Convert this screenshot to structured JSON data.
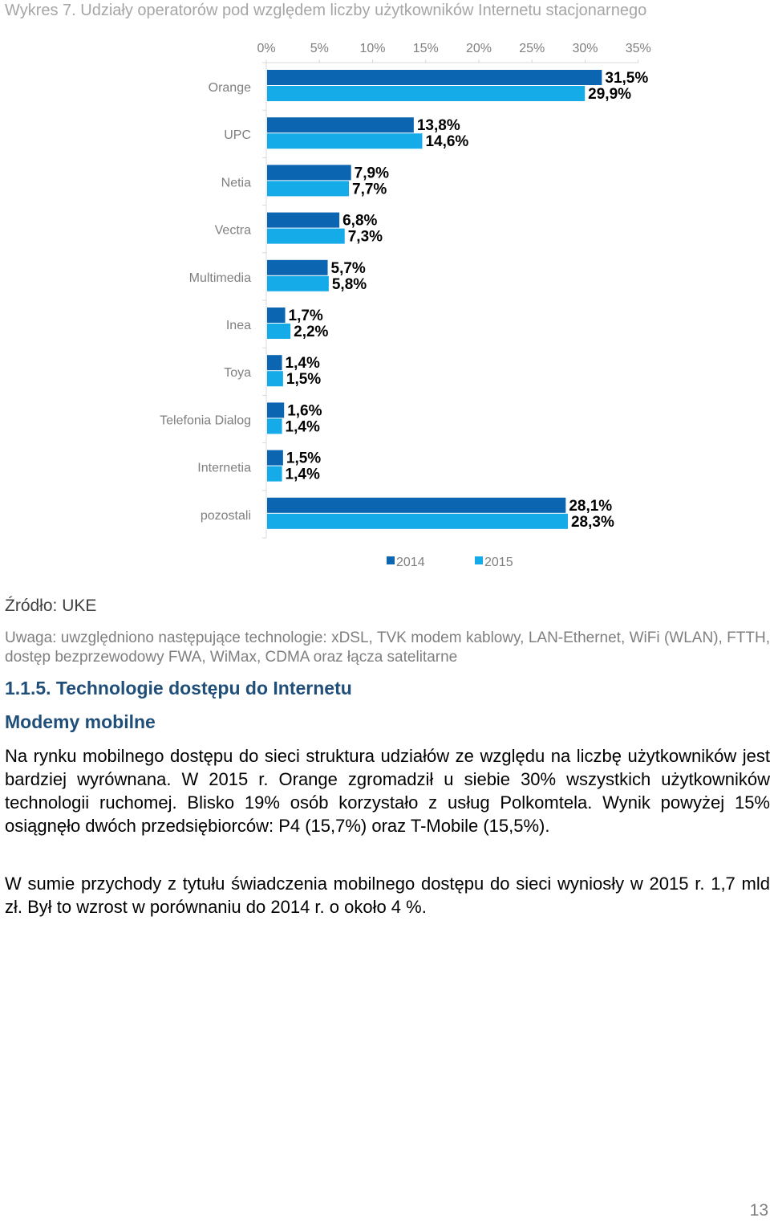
{
  "caption": "Wykres 7. Udziały operatorów pod względem liczby użytkowników Internetu stacjonarnego",
  "chart_data": {
    "type": "bar",
    "orientation": "horizontal",
    "categories": [
      "Orange",
      "UPC",
      "Netia",
      "Vectra",
      "Multimedia",
      "Inea",
      "Toya",
      "Telefonia Dialog",
      "Internetia",
      "pozostali"
    ],
    "series": [
      {
        "name": "2014",
        "color": "#0b65b1",
        "values": [
          31.5,
          13.8,
          7.9,
          6.8,
          5.7,
          1.7,
          1.4,
          1.6,
          1.5,
          28.1
        ],
        "labels": [
          "31,5%",
          "13,8%",
          "7,9%",
          "6,8%",
          "5,7%",
          "1,7%",
          "1,4%",
          "1,6%",
          "1,5%",
          "28,1%"
        ]
      },
      {
        "name": "2015",
        "color": "#15aae8",
        "values": [
          29.9,
          14.6,
          7.7,
          7.3,
          5.8,
          2.2,
          1.5,
          1.4,
          1.4,
          28.3
        ],
        "labels": [
          "29,9%",
          "14,6%",
          "7,7%",
          "7,3%",
          "5,8%",
          "2,2%",
          "1,5%",
          "1,4%",
          "1,4%",
          "28,3%"
        ]
      }
    ],
    "xlim": [
      0,
      35
    ],
    "xticks": [
      "0%",
      "5%",
      "10%",
      "15%",
      "20%",
      "25%",
      "30%",
      "35%"
    ],
    "axis_position": "top",
    "grid": false,
    "legend": "bottom"
  },
  "source": "Źródło: UKE",
  "note": "Uwaga: uwzględniono następujące technologie: xDSL, TVK modem kablowy, LAN-Ethernet, WiFi (WLAN), FTTH, dostęp bezprzewodowy FWA, WiMax, CDMA oraz łącza satelitarne",
  "section_heading": "1.1.5. Technologie dostępu do Internetu",
  "subsection_heading": "Modemy mobilne",
  "paragraph1": "Na rynku mobilnego dostępu do sieci struktura udziałów ze względu na liczbę użytkowników jest bardziej wyrównana. W 2015 r. Orange zgromadził u siebie 30% wszystkich użytkowników technologii ruchomej. Blisko 19% osób korzystało z usług Polkomtela. Wynik powyżej 15% osiągnęło dwóch przedsiębiorców: P4 (15,7%) oraz T-Mobile (15,5%).",
  "paragraph2": "W sumie przychody z tytułu świadczenia mobilnego dostępu do sieci wyniosły w 2015 r. 1,7 mld zł. Był to wzrost w porównaniu do 2014 r. o około 4 %.",
  "page_number": "13"
}
